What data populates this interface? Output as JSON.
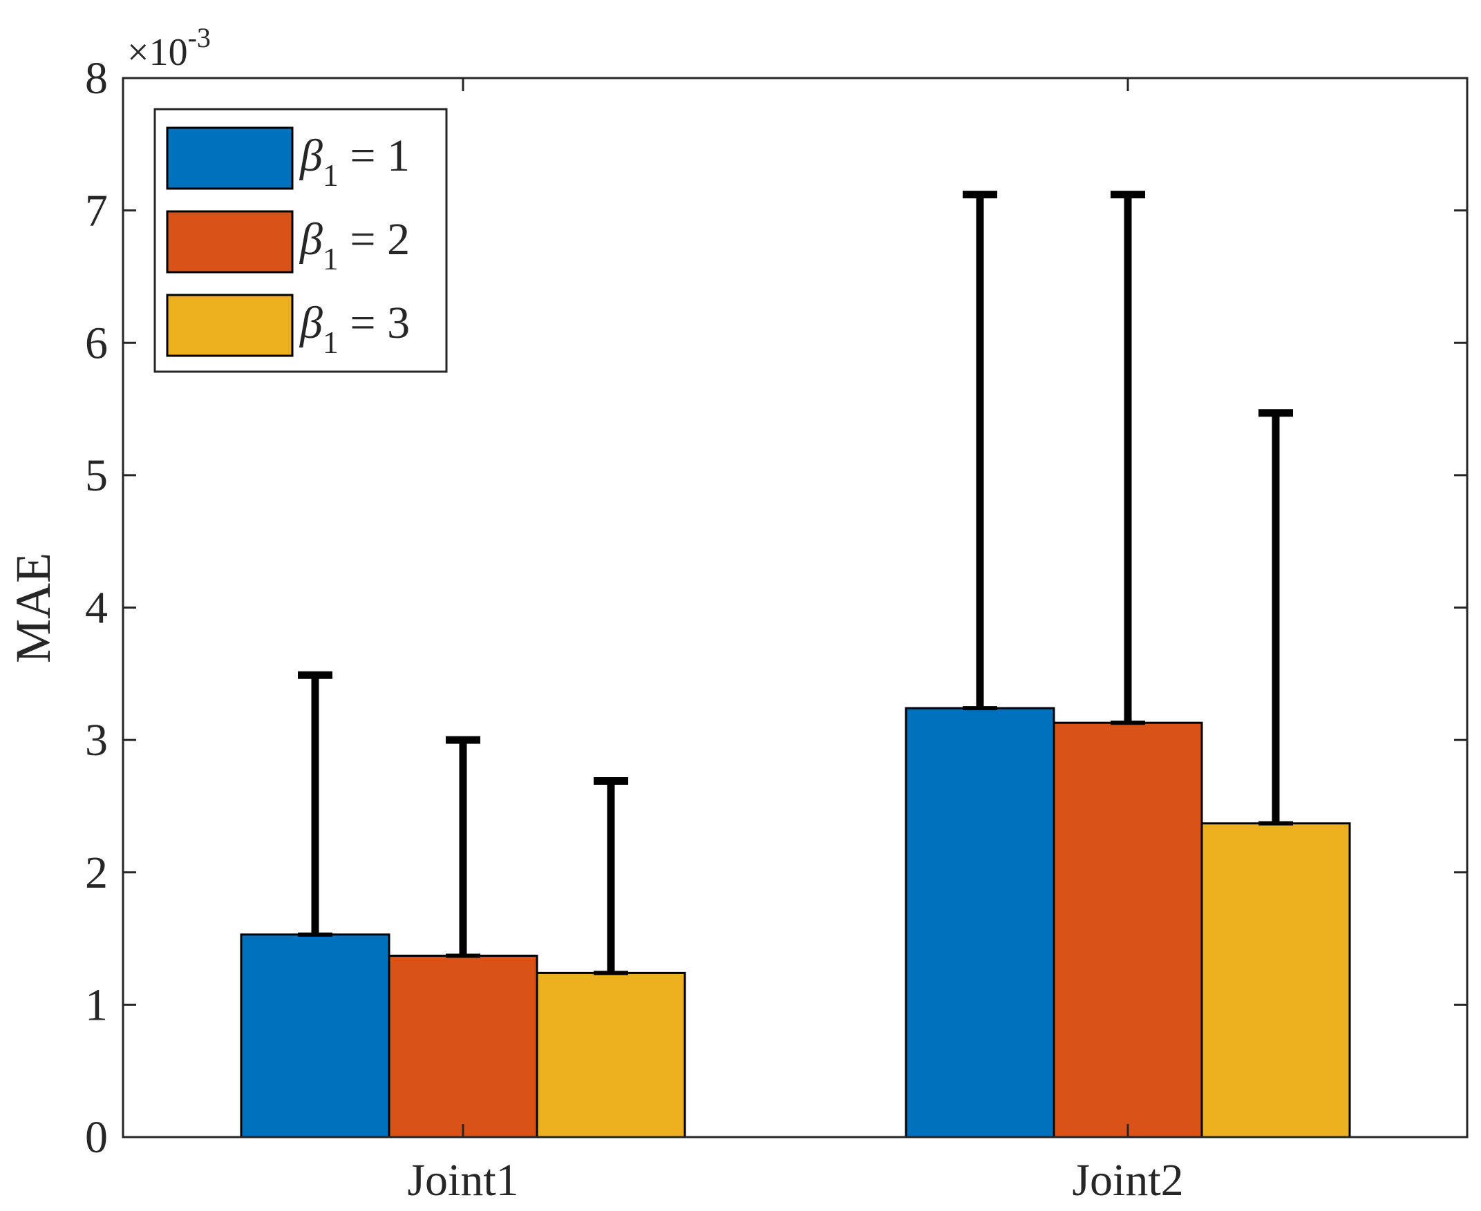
{
  "chart_data": {
    "type": "bar",
    "title": "",
    "xlabel": "",
    "ylabel": "MAE",
    "y_multiplier": "×10",
    "y_multiplier_exponent": "-3",
    "ylim": [
      0,
      8
    ],
    "yticks": [
      "0",
      "1",
      "2",
      "3",
      "4",
      "5",
      "6",
      "7",
      "8"
    ],
    "categories": [
      "Joint1",
      "Joint2"
    ],
    "grid": false,
    "legend_position": "top-left",
    "series": [
      {
        "name": "β1 = 1",
        "legend_symbol": "β",
        "legend_sub": "1",
        "legend_rest": " = 1",
        "color": "#0072BD",
        "values": [
          1.53,
          3.24
        ],
        "error_upper": [
          3.49,
          7.12
        ]
      },
      {
        "name": "β1 = 2",
        "legend_symbol": "β",
        "legend_sub": "1",
        "legend_rest": " = 2",
        "color": "#D95319",
        "values": [
          1.37,
          3.13
        ],
        "error_upper": [
          3.0,
          7.12
        ]
      },
      {
        "name": "β1 = 3",
        "legend_symbol": "β",
        "legend_sub": "1",
        "legend_rest": " = 3",
        "color": "#EDB120",
        "values": [
          1.24,
          2.37
        ],
        "error_upper": [
          2.69,
          5.47
        ]
      }
    ]
  }
}
